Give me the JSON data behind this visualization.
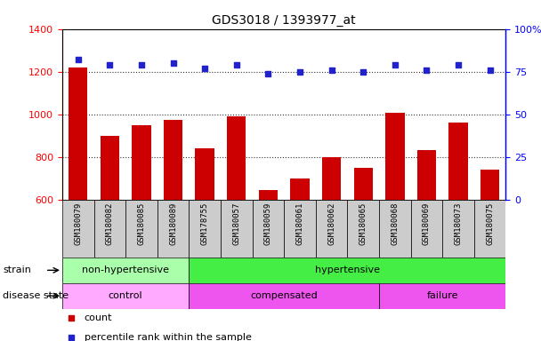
{
  "title": "GDS3018 / 1393977_at",
  "samples": [
    "GSM180079",
    "GSM180082",
    "GSM180085",
    "GSM180089",
    "GSM178755",
    "GSM180057",
    "GSM180059",
    "GSM180061",
    "GSM180062",
    "GSM180065",
    "GSM180068",
    "GSM180069",
    "GSM180073",
    "GSM180075"
  ],
  "counts": [
    1220,
    900,
    950,
    975,
    840,
    990,
    645,
    700,
    800,
    750,
    1005,
    830,
    960,
    740
  ],
  "percentile_ranks": [
    82,
    79,
    79,
    80,
    77,
    79,
    74,
    75,
    76,
    75,
    79,
    76,
    79,
    76
  ],
  "ylim_left": [
    600,
    1400
  ],
  "ylim_right": [
    0,
    100
  ],
  "yticks_left": [
    600,
    800,
    1000,
    1200,
    1400
  ],
  "yticks_right": [
    0,
    25,
    50,
    75,
    100
  ],
  "bar_color": "#cc0000",
  "dot_color": "#2222cc",
  "strain_groups": [
    {
      "label": "non-hypertensive",
      "start": 0,
      "end": 4,
      "color": "#aaffaa"
    },
    {
      "label": "hypertensive",
      "start": 4,
      "end": 14,
      "color": "#44ee44"
    }
  ],
  "disease_groups": [
    {
      "label": "control",
      "start": 0,
      "end": 4,
      "color": "#ffaaff"
    },
    {
      "label": "compensated",
      "start": 4,
      "end": 10,
      "color": "#ee55ee"
    },
    {
      "label": "failure",
      "start": 10,
      "end": 14,
      "color": "#ee55ee"
    }
  ],
  "legend_count_label": "count",
  "legend_pct_label": "percentile rank within the sample",
  "grid_color": "#333333",
  "xtick_bg_color": "#cccccc",
  "strain_label": "strain",
  "disease_label": "disease state"
}
